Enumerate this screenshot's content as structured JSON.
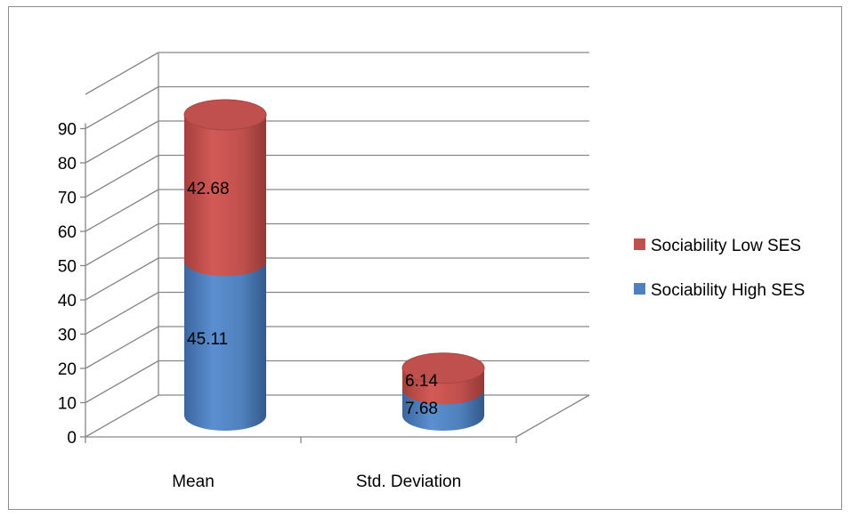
{
  "chart_data": {
    "type": "bar",
    "stacked": true,
    "style": "3d-cylinder",
    "title": "",
    "xlabel": "",
    "ylabel": "",
    "categories": [
      "Mean",
      "Std. Deviation"
    ],
    "series": [
      {
        "name": "Sociability High SES",
        "values": [
          45.11,
          7.68
        ],
        "color": "#4f81bd"
      },
      {
        "name": "Sociability Low SES",
        "values": [
          42.68,
          6.14
        ],
        "color": "#c0504d"
      }
    ],
    "ylim": [
      0,
      90
    ],
    "yticks": [
      0,
      10,
      20,
      30,
      40,
      50,
      60,
      70,
      80,
      90
    ],
    "grid": true,
    "legend_position": "right"
  },
  "colors": {
    "high": "#4f81bd",
    "low": "#c0504d",
    "grid": "#868686"
  }
}
